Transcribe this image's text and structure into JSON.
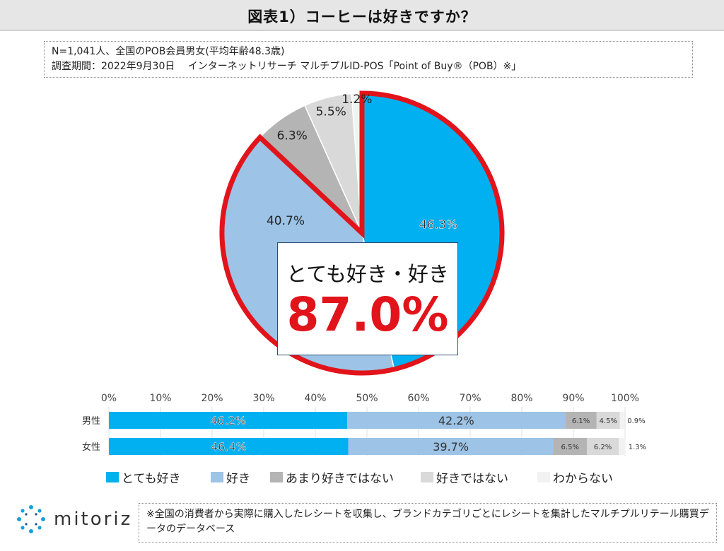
{
  "title": "図表1）コーヒーは好きですか？",
  "notes": {
    "line1": "N=1,041人、全国のPOB会員男女(平均年齢48.3歳)",
    "line2": "調査期間：2022年9月30日　 インターネットリサーチ マルチプルID-POS「Point of Buy®（POB）※」"
  },
  "callout": {
    "label": "とても好き・好き",
    "value": "87.0%"
  },
  "colors": {
    "very_like": "#00b0f0",
    "like": "#9dc3e6",
    "not_very": "#b4b4b4",
    "dislike": "#d9d9d9",
    "unknown": "#f2f2f2",
    "highlight": "#e2141b"
  },
  "chart_data": [
    {
      "type": "pie",
      "title": "",
      "categories": [
        "とても好き",
        "好き",
        "あまり好きではない",
        "好きではない",
        "わからない"
      ],
      "values": [
        46.3,
        40.7,
        6.3,
        5.5,
        1.2
      ],
      "labels": [
        "46.3%",
        "40.7%",
        "6.3%",
        "5.5%",
        "1.2%"
      ],
      "highlight": [
        "とても好き",
        "好き"
      ]
    },
    {
      "type": "bar",
      "orientation": "horizontal",
      "stacked": true,
      "categories": [
        "男性",
        "女性"
      ],
      "xlim": [
        0,
        100
      ],
      "xticks": [
        "0%",
        "10%",
        "20%",
        "30%",
        "40%",
        "50%",
        "60%",
        "70%",
        "80%",
        "90%",
        "100%"
      ],
      "series": [
        {
          "name": "とても好き",
          "values": [
            46.2,
            46.4
          ],
          "labels": [
            "46.2%",
            "46.4%"
          ]
        },
        {
          "name": "好き",
          "values": [
            42.2,
            39.7
          ],
          "labels": [
            "42.2%",
            "39.7%"
          ]
        },
        {
          "name": "あまり好きではない",
          "values": [
            6.1,
            6.5
          ],
          "labels": [
            "6.1%",
            "6.5%"
          ]
        },
        {
          "name": "好きではない",
          "values": [
            4.5,
            6.2
          ],
          "labels": [
            "4.5%",
            "6.2%"
          ]
        },
        {
          "name": "わからない",
          "values": [
            0.9,
            1.3
          ],
          "labels": [
            "0.9%",
            "1.3%"
          ]
        }
      ],
      "legend_position": "bottom"
    }
  ],
  "footer": {
    "logo_text": "mitoriz",
    "note": "※全国の消費者から実際に購入したレシートを収集し、ブランドカテゴリごとにレシートを集計したマルチプルリテール購買データのデータベース"
  }
}
